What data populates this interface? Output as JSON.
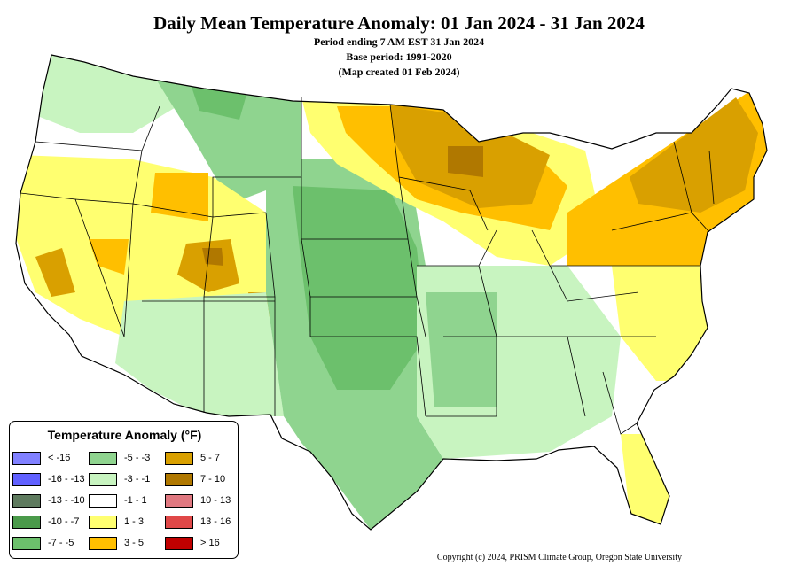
{
  "header": {
    "title": "Daily Mean Temperature Anomaly: 01 Jan 2024 - 31 Jan 2024",
    "period_line": "Period ending 7 AM EST 31 Jan 2024",
    "base_line": "Base period: 1991-2020",
    "created_line": "(Map created 01 Feb 2024)"
  },
  "legend": {
    "title": "Temperature Anomaly (°F)",
    "items": [
      {
        "label": "< -16",
        "color": "#8080ff"
      },
      {
        "label": "-16 - -13",
        "color": "#6060ff"
      },
      {
        "label": "-13 - -10",
        "color": "#5e7a5e"
      },
      {
        "label": "-10 - -7",
        "color": "#4a9a4a"
      },
      {
        "label": "-7 - -5",
        "color": "#6cc06c"
      },
      {
        "label": "-5 - -3",
        "color": "#8fd48f"
      },
      {
        "label": "-3 - -1",
        "color": "#c8f4c0"
      },
      {
        "label": "-1 - 1",
        "color": "#ffffff"
      },
      {
        "label": "1 - 3",
        "color": "#ffff70"
      },
      {
        "label": "3 - 5",
        "color": "#ffbf00"
      },
      {
        "label": "5 - 7",
        "color": "#d9a000"
      },
      {
        "label": "7 - 10",
        "color": "#b07800"
      },
      {
        "label": "10 - 13",
        "color": "#e07880"
      },
      {
        "label": "13 - 16",
        "color": "#e04848"
      },
      {
        "label": "> 16",
        "color": "#c00000"
      }
    ]
  },
  "footer": {
    "copyright": "Copyright (c) 2024, PRISM Climate Group, Oregon State University"
  }
}
